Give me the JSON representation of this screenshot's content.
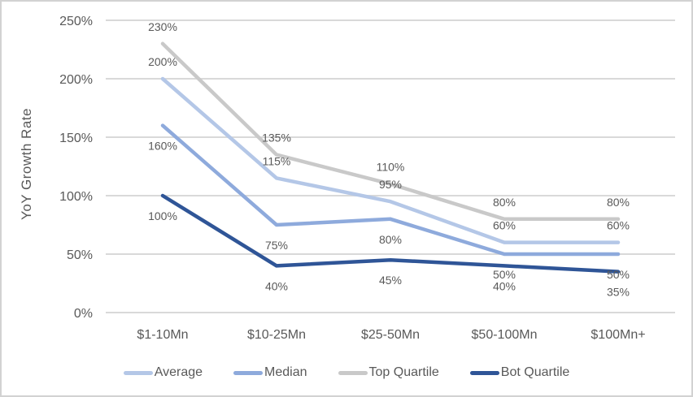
{
  "chart_data": {
    "type": "line",
    "title": "",
    "xlabel": "",
    "ylabel": "YoY Growth Rate",
    "categories": [
      "$1-10Mn",
      "$10-25Mn",
      "$25-50Mn",
      "$50-100Mn",
      "$100Mn+"
    ],
    "series": [
      {
        "name": "Average",
        "color": "#B4C7E7",
        "values": [
          200,
          115,
          95,
          60,
          60
        ],
        "label_side": "above"
      },
      {
        "name": "Median",
        "color": "#8EAADC",
        "values": [
          160,
          75,
          80,
          50,
          50
        ],
        "label_side": "below"
      },
      {
        "name": "Top Quartile",
        "color": "#C9C9C9",
        "values": [
          230,
          135,
          110,
          80,
          80
        ],
        "label_side": "above"
      },
      {
        "name": "Bot Quartile",
        "color": "#2F5597",
        "values": [
          100,
          40,
          45,
          40,
          35
        ],
        "label_side": "below"
      }
    ],
    "ylim": [
      0,
      250
    ],
    "yticks": [
      {
        "value": 0,
        "label": "0%"
      },
      {
        "value": 50,
        "label": "50%"
      },
      {
        "value": 100,
        "label": "100%"
      },
      {
        "value": 150,
        "label": "150%"
      },
      {
        "value": 200,
        "label": "200%"
      },
      {
        "value": 250,
        "label": "250%"
      }
    ],
    "data_label_suffix": "%",
    "grid": true,
    "legend_position": "bottom",
    "colors": {
      "text": "#595959",
      "gridline": "#D9D9D9",
      "frame_border": "#D2D2D2"
    }
  }
}
